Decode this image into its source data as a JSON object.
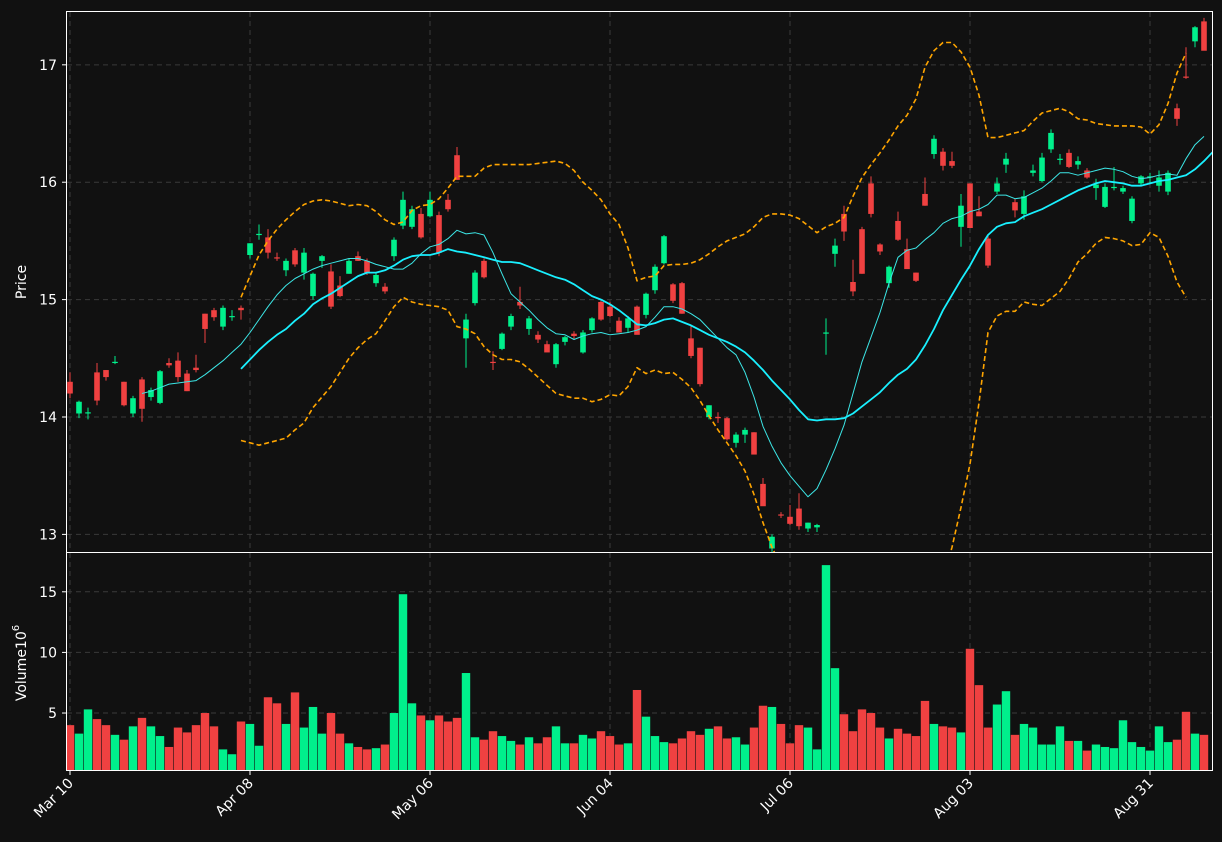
{
  "chart_data": {
    "type": "candlestick",
    "title": "",
    "colors": {
      "background": "#111111",
      "up": "#00f08c",
      "down": "#f04141",
      "ma_short": "#3ce6e6",
      "ma_long": "#19f0ff",
      "bands": "#ffa500",
      "frame": "#ffffff"
    },
    "x_tick_labels": [
      "Mar 10",
      "Apr 08",
      "May 06",
      "Jun 04",
      "Jul 06",
      "Aug 03",
      "Aug 31"
    ],
    "x_tick_index": [
      0,
      20,
      40,
      60,
      80,
      100,
      120
    ],
    "price_panel": {
      "ylabel": "Price",
      "ylim": [
        12.85,
        17.45
      ],
      "yticks": [
        13,
        14,
        15,
        16,
        17
      ],
      "grid": true,
      "ohlc": [
        [
          14.3,
          14.38,
          14.16,
          14.2
        ],
        [
          14.03,
          14.14,
          13.99,
          14.13
        ],
        [
          14.04,
          14.08,
          13.98,
          14.04
        ],
        [
          14.38,
          14.46,
          14.1,
          14.14
        ],
        [
          14.4,
          14.4,
          14.31,
          14.34
        ],
        [
          14.47,
          14.52,
          14.45,
          14.47
        ],
        [
          14.3,
          14.3,
          14.09,
          14.1
        ],
        [
          14.03,
          14.18,
          14.0,
          14.16
        ],
        [
          14.32,
          14.34,
          13.96,
          14.07
        ],
        [
          14.17,
          14.25,
          14.14,
          14.23
        ],
        [
          14.12,
          14.4,
          14.11,
          14.39
        ],
        [
          14.46,
          14.5,
          14.42,
          14.44
        ],
        [
          14.48,
          14.55,
          14.3,
          14.34
        ],
        [
          14.37,
          14.4,
          14.22,
          14.22
        ],
        [
          14.42,
          14.53,
          14.38,
          14.4
        ],
        [
          14.88,
          14.88,
          14.63,
          14.75
        ],
        [
          14.91,
          14.93,
          14.82,
          14.85
        ],
        [
          14.77,
          14.95,
          14.74,
          14.93
        ],
        [
          14.86,
          14.91,
          14.82,
          14.86
        ],
        [
          14.93,
          14.95,
          14.83,
          14.91
        ],
        [
          15.38,
          15.48,
          15.35,
          15.48
        ],
        [
          15.55,
          15.64,
          15.51,
          15.56
        ],
        [
          15.53,
          15.6,
          15.35,
          15.4
        ],
        [
          15.36,
          15.4,
          15.33,
          15.35
        ],
        [
          15.25,
          15.35,
          15.2,
          15.33
        ],
        [
          15.42,
          15.44,
          15.28,
          15.3
        ],
        [
          15.23,
          15.44,
          15.17,
          15.4
        ],
        [
          15.03,
          15.23,
          15.0,
          15.22
        ],
        [
          15.33,
          15.38,
          15.27,
          15.37
        ],
        [
          15.24,
          15.3,
          14.92,
          14.94
        ],
        [
          15.12,
          15.2,
          15.02,
          15.03
        ],
        [
          15.22,
          15.35,
          15.22,
          15.33
        ],
        [
          15.37,
          15.41,
          15.33,
          15.33
        ],
        [
          15.33,
          15.35,
          15.21,
          15.23
        ],
        [
          15.14,
          15.23,
          15.11,
          15.21
        ],
        [
          15.11,
          15.14,
          15.05,
          15.07
        ],
        [
          15.37,
          15.53,
          15.33,
          15.51
        ],
        [
          15.63,
          15.92,
          15.6,
          15.85
        ],
        [
          15.62,
          15.8,
          15.6,
          15.77
        ],
        [
          15.73,
          15.78,
          15.52,
          15.53
        ],
        [
          15.71,
          15.92,
          15.7,
          15.85
        ],
        [
          15.72,
          15.75,
          15.37,
          15.4
        ],
        [
          15.85,
          15.9,
          15.75,
          15.77
        ],
        [
          16.23,
          16.3,
          16.02,
          16.02
        ],
        [
          14.67,
          14.88,
          14.42,
          14.83
        ],
        [
          14.97,
          15.25,
          14.95,
          15.23
        ],
        [
          15.33,
          15.35,
          15.18,
          15.19
        ],
        [
          14.47,
          14.56,
          14.4,
          14.46
        ],
        [
          14.58,
          14.72,
          14.57,
          14.71
        ],
        [
          14.77,
          14.88,
          14.74,
          14.86
        ],
        [
          14.98,
          15.11,
          14.92,
          14.95
        ],
        [
          14.75,
          14.86,
          14.7,
          14.84
        ],
        [
          14.7,
          14.73,
          14.63,
          14.66
        ],
        [
          14.62,
          14.65,
          14.56,
          14.55
        ],
        [
          14.45,
          14.63,
          14.42,
          14.62
        ],
        [
          14.64,
          14.69,
          14.61,
          14.68
        ],
        [
          14.71,
          14.73,
          14.66,
          14.69
        ],
        [
          14.55,
          14.74,
          14.54,
          14.72
        ],
        [
          14.74,
          14.85,
          14.72,
          14.84
        ],
        [
          14.98,
          14.99,
          14.82,
          14.83
        ],
        [
          14.94,
          14.98,
          14.85,
          14.86
        ],
        [
          14.82,
          14.85,
          14.73,
          14.72
        ],
        [
          14.76,
          14.86,
          14.72,
          14.84
        ],
        [
          14.94,
          14.95,
          14.73,
          14.7
        ],
        [
          14.87,
          15.06,
          14.84,
          15.05
        ],
        [
          15.08,
          15.3,
          15.05,
          15.28
        ],
        [
          15.31,
          15.55,
          15.3,
          15.54
        ],
        [
          15.13,
          15.14,
          14.97,
          14.99
        ],
        [
          15.14,
          15.15,
          14.88,
          14.88
        ],
        [
          14.67,
          14.78,
          14.5,
          14.52
        ],
        [
          14.59,
          14.59,
          14.26,
          14.28
        ],
        [
          14.0,
          14.1,
          13.98,
          14.1
        ],
        [
          14.0,
          14.04,
          13.95,
          13.99
        ],
        [
          13.99,
          14.0,
          13.8,
          13.81
        ],
        [
          13.78,
          13.87,
          13.74,
          13.85
        ],
        [
          13.85,
          13.91,
          13.78,
          13.89
        ],
        [
          13.87,
          13.87,
          13.69,
          13.68
        ],
        [
          13.43,
          13.48,
          13.26,
          13.24
        ],
        [
          12.88,
          13.0,
          12.85,
          12.98
        ],
        [
          13.17,
          13.19,
          13.14,
          13.16
        ],
        [
          13.15,
          13.25,
          13.08,
          13.09
        ],
        [
          13.22,
          13.35,
          13.04,
          13.07
        ],
        [
          13.05,
          13.1,
          13.02,
          13.1
        ],
        [
          13.06,
          13.09,
          13.02,
          13.08
        ],
        [
          14.71,
          14.84,
          14.53,
          14.72
        ],
        [
          15.39,
          15.52,
          15.28,
          15.46
        ],
        [
          15.73,
          15.8,
          15.5,
          15.58
        ],
        [
          15.15,
          15.34,
          15.03,
          15.07
        ],
        [
          15.6,
          15.62,
          15.22,
          15.22
        ],
        [
          15.99,
          16.05,
          15.7,
          15.73
        ],
        [
          15.47,
          15.48,
          15.38,
          15.41
        ],
        [
          15.14,
          15.29,
          15.1,
          15.28
        ],
        [
          15.67,
          15.75,
          15.5,
          15.51
        ],
        [
          15.43,
          15.52,
          15.28,
          15.26
        ],
        [
          15.23,
          15.23,
          15.15,
          15.16
        ],
        [
          15.9,
          16.04,
          15.8,
          15.8
        ],
        [
          16.24,
          16.4,
          16.2,
          16.37
        ],
        [
          16.26,
          16.29,
          16.1,
          16.14
        ],
        [
          16.18,
          16.26,
          16.12,
          16.14
        ],
        [
          15.62,
          15.9,
          15.45,
          15.8
        ],
        [
          15.99,
          15.99,
          15.61,
          15.61
        ],
        [
          15.75,
          15.88,
          15.71,
          15.71
        ],
        [
          15.52,
          15.55,
          15.27,
          15.29
        ],
        [
          15.92,
          16.04,
          15.9,
          15.99
        ],
        [
          16.15,
          16.25,
          16.08,
          16.2
        ],
        [
          15.83,
          15.86,
          15.7,
          15.76
        ],
        [
          15.73,
          15.93,
          15.68,
          15.88
        ],
        [
          16.08,
          16.15,
          16.05,
          16.1
        ],
        [
          16.01,
          16.25,
          16.0,
          16.21
        ],
        [
          16.28,
          16.45,
          16.25,
          16.42
        ],
        [
          16.19,
          16.24,
          16.15,
          16.2
        ],
        [
          16.25,
          16.28,
          16.12,
          16.13
        ],
        [
          16.15,
          16.22,
          16.11,
          16.18
        ],
        [
          16.1,
          16.12,
          16.03,
          16.04
        ],
        [
          15.95,
          16.03,
          15.85,
          15.98
        ],
        [
          15.79,
          15.99,
          15.78,
          15.96
        ],
        [
          15.95,
          16.13,
          15.93,
          15.96
        ],
        [
          15.92,
          15.97,
          15.9,
          15.95
        ],
        [
          15.67,
          15.88,
          15.65,
          15.86
        ],
        [
          15.99,
          16.06,
          15.97,
          16.05
        ],
        [
          16.04,
          16.08,
          15.99,
          16.05
        ],
        [
          15.97,
          16.1,
          15.92,
          16.04
        ],
        [
          15.92,
          16.1,
          15.89,
          16.08
        ],
        [
          16.63,
          16.67,
          16.48,
          16.54
        ],
        [
          16.9,
          17.15,
          16.88,
          16.89
        ],
        [
          17.2,
          17.33,
          17.15,
          17.32
        ],
        [
          17.37,
          17.4,
          17.13,
          17.12
        ]
      ],
      "ma_short": [
        null,
        null,
        null,
        null,
        null,
        null,
        null,
        null,
        14.2,
        14.22,
        14.25,
        14.28,
        14.29,
        14.3,
        14.31,
        14.36,
        14.42,
        14.48,
        14.55,
        14.62,
        14.72,
        14.83,
        14.94,
        15.04,
        15.12,
        15.18,
        15.22,
        15.26,
        15.29,
        15.31,
        15.33,
        15.35,
        15.35,
        15.33,
        15.3,
        15.28,
        15.26,
        15.26,
        15.31,
        15.39,
        15.45,
        15.47,
        15.52,
        15.59,
        15.56,
        15.57,
        15.55,
        15.4,
        15.22,
        15.05,
        14.98,
        14.91,
        14.83,
        14.76,
        14.71,
        14.7,
        14.66,
        14.69,
        14.71,
        14.72,
        14.7,
        14.71,
        14.72,
        14.74,
        14.77,
        14.85,
        14.94,
        14.94,
        14.92,
        14.88,
        14.83,
        14.75,
        14.67,
        14.59,
        14.53,
        14.38,
        14.17,
        13.92,
        13.75,
        13.61,
        13.5,
        13.41,
        13.32,
        13.39,
        13.55,
        13.73,
        13.93,
        14.2,
        14.47,
        14.68,
        14.89,
        15.14,
        15.36,
        15.42,
        15.44,
        15.51,
        15.57,
        15.65,
        15.69,
        15.71,
        15.75,
        15.77,
        15.81,
        15.89,
        15.89,
        15.86,
        15.87,
        15.91,
        15.95,
        16.01,
        16.08,
        16.08,
        16.06,
        16.08,
        16.1,
        16.12,
        16.11,
        16.09,
        16.05,
        16.03,
        16.04,
        16.06,
        16.07,
        16.06,
        16.2,
        16.32,
        16.39
      ],
      "ma_long": [
        null,
        null,
        null,
        null,
        null,
        null,
        null,
        null,
        null,
        null,
        null,
        null,
        null,
        null,
        null,
        null,
        null,
        null,
        null,
        14.41,
        14.49,
        14.57,
        14.64,
        14.7,
        14.75,
        14.82,
        14.88,
        14.96,
        15.01,
        15.05,
        15.1,
        15.15,
        15.2,
        15.23,
        15.23,
        15.25,
        15.29,
        15.34,
        15.37,
        15.38,
        15.38,
        15.4,
        15.43,
        15.41,
        15.4,
        15.38,
        15.36,
        15.34,
        15.32,
        15.32,
        15.31,
        15.28,
        15.25,
        15.22,
        15.19,
        15.17,
        15.13,
        15.08,
        15.03,
        15.0,
        14.96,
        14.91,
        14.85,
        14.79,
        14.78,
        14.8,
        14.83,
        14.84,
        14.81,
        14.78,
        14.74,
        14.7,
        14.67,
        14.64,
        14.6,
        14.55,
        14.48,
        14.4,
        14.31,
        14.23,
        14.15,
        14.06,
        13.98,
        13.97,
        13.98,
        13.98,
        13.99,
        14.03,
        14.09,
        14.15,
        14.21,
        14.29,
        14.36,
        14.41,
        14.49,
        14.61,
        14.75,
        14.91,
        15.04,
        15.17,
        15.29,
        15.43,
        15.55,
        15.62,
        15.65,
        15.66,
        15.71,
        15.74,
        15.77,
        15.81,
        15.85,
        15.89,
        15.93,
        15.96,
        15.99,
        16.01,
        16.0,
        15.99,
        15.97,
        15.97,
        15.99,
        16.01,
        16.02,
        16.04,
        16.06,
        16.11,
        16.18,
        16.26
      ],
      "band_upper": [
        null,
        null,
        null,
        null,
        null,
        null,
        null,
        null,
        null,
        null,
        null,
        null,
        null,
        null,
        null,
        null,
        null,
        null,
        null,
        15.02,
        15.2,
        15.38,
        15.5,
        15.6,
        15.68,
        15.75,
        15.81,
        15.84,
        15.85,
        15.84,
        15.82,
        15.8,
        15.81,
        15.8,
        15.75,
        15.68,
        15.64,
        15.66,
        15.76,
        15.8,
        15.81,
        15.86,
        15.95,
        16.05,
        16.05,
        16.05,
        16.12,
        16.15,
        16.15,
        16.15,
        16.15,
        16.15,
        16.16,
        16.17,
        16.18,
        16.16,
        16.1,
        16.0,
        15.93,
        15.85,
        15.73,
        15.64,
        15.44,
        15.16,
        15.19,
        15.2,
        15.29,
        15.3,
        15.3,
        15.31,
        15.34,
        15.39,
        15.45,
        15.5,
        15.53,
        15.56,
        15.62,
        15.7,
        15.73,
        15.73,
        15.72,
        15.69,
        15.63,
        15.57,
        15.62,
        15.65,
        15.7,
        15.88,
        16.04,
        16.15,
        16.25,
        16.36,
        16.48,
        16.57,
        16.71,
        16.98,
        17.12,
        17.19,
        17.19,
        17.11,
        16.98,
        16.74,
        16.38,
        16.38,
        16.4,
        16.42,
        16.44,
        16.52,
        16.59,
        16.61,
        16.63,
        16.6,
        16.54,
        16.53,
        16.5,
        16.49,
        16.48,
        16.48,
        16.48,
        16.47,
        16.41,
        16.49,
        16.67,
        16.93,
        17.1
      ]
    },
    "volume_panel": {
      "ylabel": "Volume",
      "ylabel_exponent": "10",
      "ylabel_power": "6",
      "ylim": [
        0.3,
        18.2
      ],
      "yticks": [
        5,
        10,
        15
      ],
      "ytick_labels": [
        "5",
        "10",
        "15"
      ],
      "grid": true,
      "values": [
        4.0,
        3.3,
        5.3,
        4.5,
        4.0,
        3.2,
        2.8,
        3.9,
        4.6,
        3.9,
        3.1,
        2.2,
        3.8,
        3.4,
        4.0,
        5.0,
        3.9,
        2.0,
        1.6,
        4.3,
        4.1,
        2.3,
        6.3,
        5.8,
        4.1,
        6.7,
        3.8,
        5.5,
        3.3,
        5.0,
        3.3,
        2.5,
        2.2,
        2.0,
        2.1,
        2.4,
        5.0,
        14.8,
        5.8,
        4.8,
        4.4,
        4.8,
        4.3,
        4.6,
        8.3,
        3.0,
        2.8,
        3.5,
        3.1,
        2.7,
        2.4,
        3.0,
        2.5,
        3.0,
        3.9,
        2.5,
        2.5,
        3.2,
        2.9,
        3.5,
        3.1,
        2.4,
        2.5,
        6.9,
        4.7,
        3.1,
        2.6,
        2.5,
        2.9,
        3.5,
        3.2,
        3.7,
        3.9,
        2.9,
        3.0,
        2.4,
        3.8,
        5.6,
        5.5,
        4.1,
        2.5,
        4.0,
        3.8,
        2.0,
        17.2,
        8.7,
        4.9,
        3.5,
        5.3,
        5.0,
        3.8,
        2.9,
        3.7,
        3.3,
        3.1,
        6.0,
        4.1,
        3.9,
        3.8,
        3.4,
        10.3,
        7.3,
        3.8,
        5.7,
        6.8,
        3.2,
        4.1,
        3.8,
        2.4,
        2.4,
        3.9,
        2.7,
        2.7,
        1.9,
        2.4,
        2.2,
        2.1,
        4.4,
        2.6,
        2.2,
        1.9,
        3.9,
        2.6,
        2.8,
        5.1,
        3.3,
        3.2
      ]
    }
  }
}
